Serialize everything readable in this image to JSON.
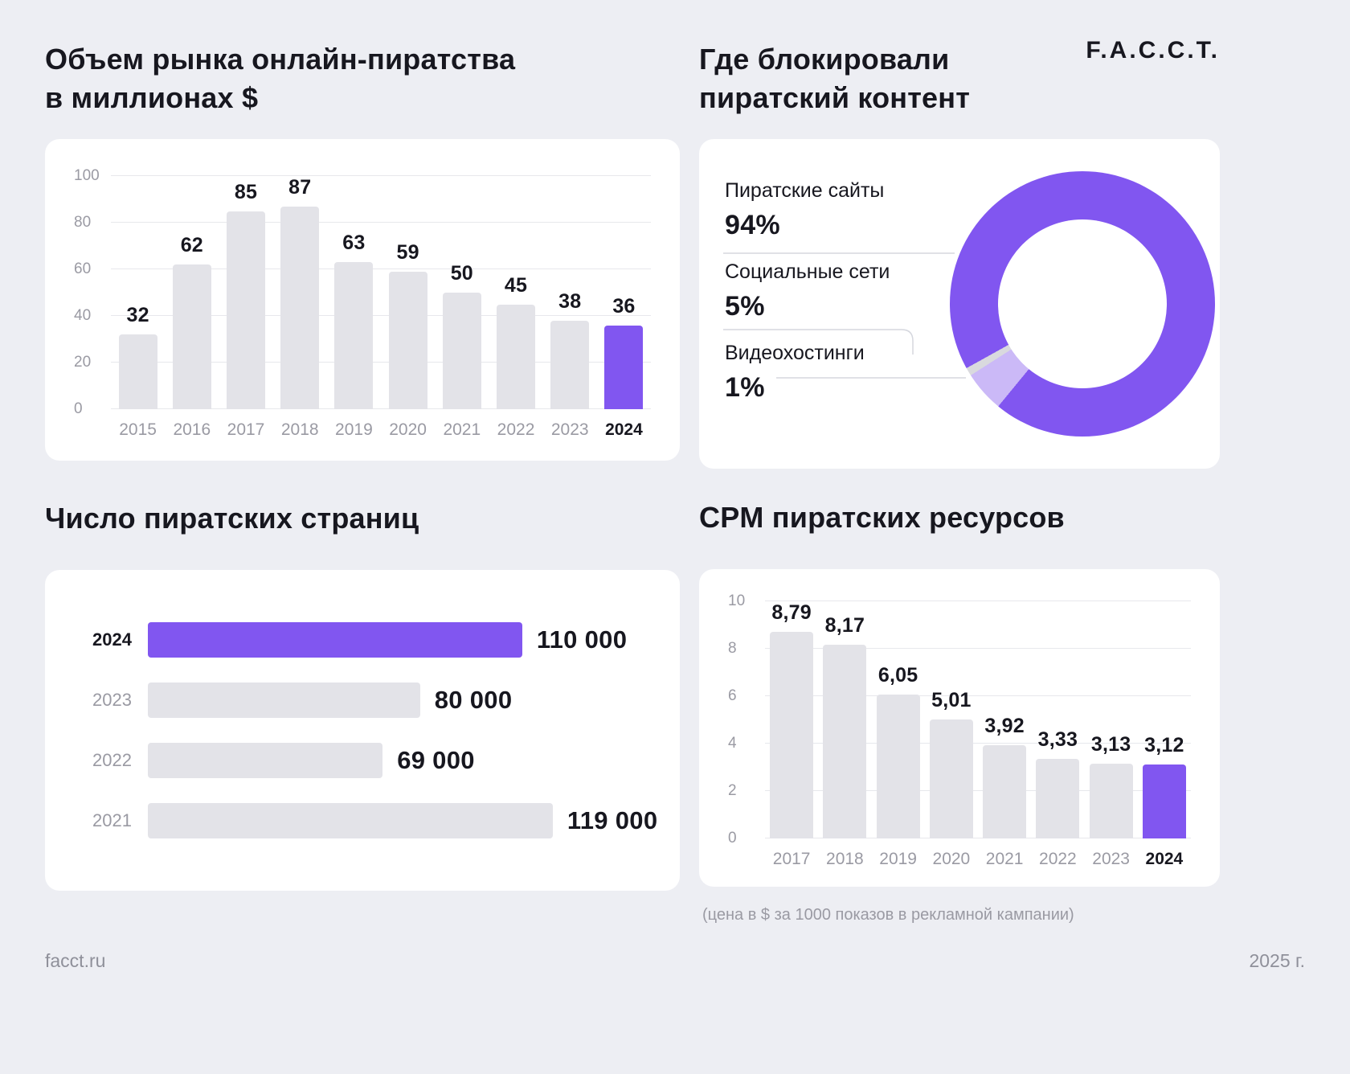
{
  "logo": "F.A.C.C.T.",
  "footer": {
    "left": "facct.ru",
    "right": "2025 г."
  },
  "colors": {
    "background": "#edeef3",
    "card": "#ffffff",
    "accent": "#8156f0",
    "accent_light": "#cbb9f7",
    "neutral_bar": "#e3e3e8",
    "neutral_slice": "#d9d9de",
    "text_dark": "#17171f",
    "text_grey": "#9a9aa3",
    "gridline": "#e7e8ec"
  },
  "sections": {
    "market": {
      "title": "Объем рынка онлайн-пиратства\nв миллионах $"
    },
    "blocked": {
      "title": "Где блокировали\nпиратский контент"
    },
    "pages": {
      "title": "Число пиратских страниц"
    },
    "cpm": {
      "title": "CPM пиратских ресурсов",
      "footnote": "(цена в $ за 1000 показов в рекламной кампании)"
    }
  },
  "chart_data": [
    {
      "id": "market",
      "type": "bar",
      "title": "Объем рынка онлайн-пиратства в миллионах $",
      "categories": [
        "2015",
        "2016",
        "2017",
        "2018",
        "2019",
        "2020",
        "2021",
        "2022",
        "2023",
        "2024"
      ],
      "values": [
        32,
        62,
        85,
        87,
        63,
        59,
        50,
        45,
        38,
        36
      ],
      "ylim": [
        0,
        100
      ],
      "yticks": [
        0,
        20,
        40,
        60,
        80,
        100
      ],
      "highlight_category": "2024",
      "grid": true,
      "legend": "none"
    },
    {
      "id": "blocked",
      "type": "pie",
      "subtype": "donut",
      "title": "Где блокировали пиратский контент",
      "segments": [
        {
          "label": "Пиратские сайты",
          "value": 94,
          "display": "94%",
          "color": "#8156f0"
        },
        {
          "label": "Социальные сети",
          "value": 5,
          "display": "5%",
          "color": "#cbb9f7"
        },
        {
          "label": "Видеохостинги",
          "value": 1,
          "display": "1%",
          "color": "#d9d9de"
        }
      ],
      "legend_position": "left"
    },
    {
      "id": "pages",
      "type": "bar",
      "orientation": "horizontal",
      "title": "Число пиратских страниц",
      "categories": [
        "2024",
        "2023",
        "2022",
        "2021"
      ],
      "values": [
        110000,
        80000,
        69000,
        119000
      ],
      "labels": [
        "110 000",
        "80 000",
        "69 000",
        "119 000"
      ],
      "xmax": 119000,
      "highlight_category": "2024"
    },
    {
      "id": "cpm",
      "type": "bar",
      "title": "CPM пиратских ресурсов",
      "categories": [
        "2017",
        "2018",
        "2019",
        "2020",
        "2021",
        "2022",
        "2023",
        "2024"
      ],
      "values": [
        8.79,
        8.17,
        6.05,
        5.01,
        3.92,
        3.33,
        3.13,
        3.12
      ],
      "labels": [
        "8,79",
        "8,17",
        "6,05",
        "5,01",
        "3,92",
        "3,33",
        "3,13",
        "3,12"
      ],
      "ylim": [
        0,
        10
      ],
      "yticks": [
        0,
        2,
        4,
        6,
        8,
        10
      ],
      "highlight_category": "2024",
      "grid": true,
      "note": "(цена в $ за 1000 показов в рекламной кампании)"
    }
  ]
}
